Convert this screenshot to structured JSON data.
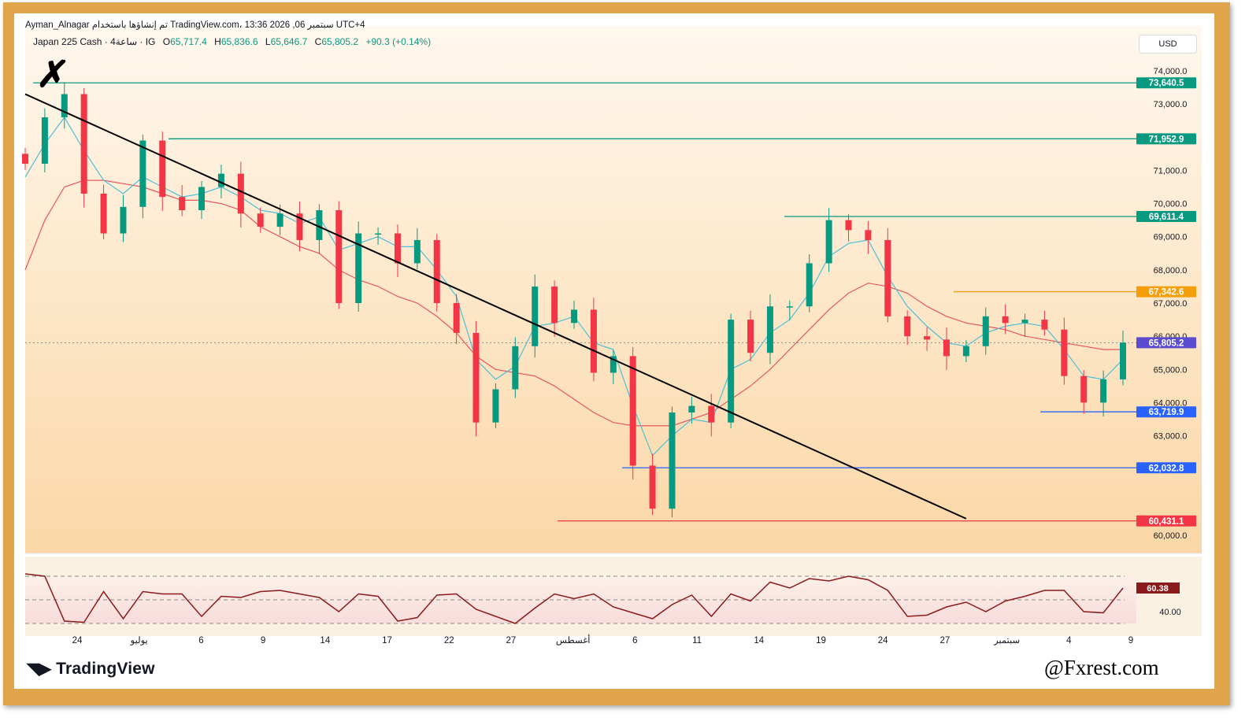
{
  "header": {
    "line1": "Ayman_Alnagar تم إنشاؤها باستخدام TradingView.com، 13:36 2026 ,06 سبتمبر UTC+4",
    "symbol": "Japan 225 Cash · 4ساعة · IG",
    "open_label": "O",
    "open": "65,717.4",
    "high_label": "H",
    "high": "65,836.6",
    "low_label": "L",
    "low": "65,646.7",
    "close_label": "C",
    "close": "65,805.2",
    "change": "+90.3 (+0.14%)"
  },
  "currency": "USD",
  "logo_text": "TradingView",
  "watermark": "@Fxrest.com",
  "colors": {
    "up": "#089981",
    "down": "#f23645",
    "fast_ma": "#4dbfd6",
    "slow_ma": "#e5585f",
    "trendline": "#000000",
    "rsi": "#8b1a1a",
    "frame": "#e0a54a"
  },
  "chart_data": {
    "type": "line",
    "title": "",
    "xlabel": "",
    "ylabel": "",
    "ylim": [
      59500,
      74500
    ],
    "yticks": [
      "74,000.0",
      "73,000.0",
      "71,000.0",
      "70,000.0",
      "69,000.0",
      "68,000.0",
      "67,000.0",
      "66,000.0",
      "65,000.0",
      "64,000.0",
      "63,000.0",
      "60,000.0"
    ],
    "x": [
      0,
      6,
      12,
      18,
      24,
      30,
      36,
      42,
      48,
      54,
      60,
      66,
      72,
      78,
      84,
      90,
      96,
      102,
      108,
      114,
      120,
      126,
      132,
      138,
      144,
      150,
      156,
      162,
      168,
      174,
      180,
      186,
      192,
      198,
      204,
      210,
      216,
      222,
      228,
      234,
      240,
      246,
      252,
      258,
      264,
      270,
      276,
      282,
      288,
      294,
      300,
      306,
      312,
      318,
      324,
      330,
      336
    ],
    "x_note": "",
    "xticks": [
      "24",
      "يوليو",
      "6",
      "9",
      "14",
      "17",
      "22",
      "27",
      "أغسطس",
      "6",
      "11",
      "14",
      "19",
      "24",
      "27",
      "سبتمبر",
      "4",
      "9"
    ],
    "series": [
      {
        "name": "",
        "values": [
          71200,
          72600,
          73300,
          70300,
          69100,
          69900,
          71900,
          70200,
          69800,
          70500,
          70900,
          69700,
          69300,
          69700,
          68900,
          69800,
          67000,
          69100,
          69100,
          68200,
          68900,
          67000,
          66100,
          63400,
          64400,
          65700,
          67500,
          66400,
          66800,
          64900,
          65400,
          62100,
          60800,
          63700,
          63900,
          63400,
          66500,
          65500,
          66900,
          66900,
          68200,
          69500,
          69200,
          68900,
          66600,
          66000,
          65900,
          65400,
          65700,
          66600,
          66400,
          66500,
          66200,
          64800,
          64000,
          64700,
          65805
        ]
      },
      {
        "name": "",
        "values": [
          70800,
          71800,
          72600,
          71600,
          70700,
          70300,
          70800,
          70500,
          70200,
          70300,
          70500,
          70200,
          69800,
          69700,
          69400,
          69600,
          68600,
          68800,
          69000,
          68700,
          68700,
          68000,
          67200,
          65300,
          64700,
          65100,
          66300,
          66400,
          66600,
          65800,
          65600,
          63900,
          62400,
          63000,
          63500,
          63400,
          65000,
          65300,
          66100,
          66500,
          67300,
          68400,
          68800,
          68900,
          67800,
          66900,
          66300,
          65800,
          65700,
          66100,
          66300,
          66400,
          66300,
          65600,
          64800,
          64700,
          65300
        ]
      },
      {
        "name": "",
        "values": [
          68000,
          69500,
          70500,
          70700,
          70700,
          70600,
          70500,
          70300,
          70100,
          70100,
          70000,
          69800,
          69300,
          69000,
          68700,
          68500,
          68000,
          67700,
          67500,
          67200,
          67000,
          66600,
          66100,
          65400,
          65000,
          64900,
          64800,
          64500,
          64100,
          63700,
          63400,
          63300,
          63300,
          63300,
          63500,
          63700,
          64100,
          64500,
          65000,
          65600,
          66200,
          66800,
          67300,
          67600,
          67500,
          67300,
          66900,
          66600,
          66400,
          66300,
          66200,
          66000,
          65900,
          65800,
          65700,
          65600,
          65600
        ]
      }
    ],
    "levels": [
      "73,640.5",
      "71,952.9",
      "69,611.4",
      "67,342.6",
      "65,805.2",
      "63,719.9",
      "62,032.8",
      "60,431.1"
    ],
    "trendline": [
      [
        0,
        73300
      ],
      [
        288,
        60500
      ]
    ],
    "rsi": {
      "ylim": [
        20,
        80
      ],
      "band": [
        30,
        70
      ],
      "tick": "40.00",
      "last": "60.38",
      "values": [
        72,
        70,
        32,
        31,
        57,
        34,
        57,
        55,
        55,
        36,
        53,
        52,
        57,
        58,
        55,
        52,
        40,
        55,
        53,
        32,
        35,
        54,
        55,
        42,
        36,
        30,
        43,
        55,
        51,
        55,
        44,
        39,
        34,
        46,
        54,
        36,
        55,
        49,
        65,
        60,
        68,
        66,
        70,
        67,
        58,
        36,
        37,
        44,
        48,
        40,
        49,
        53,
        58,
        58,
        40,
        39,
        60
      ]
    }
  }
}
